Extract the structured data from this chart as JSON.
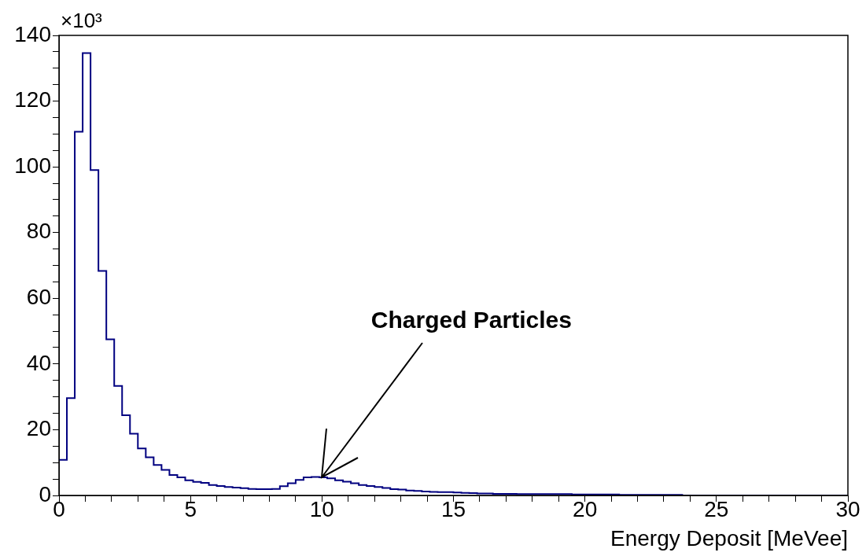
{
  "chart_data": {
    "type": "histogram",
    "xlabel": "Energy Deposit [MeVee]",
    "color": "#000080",
    "bins": [
      0,
      0.3,
      0.6,
      0.9,
      1.2,
      1.5,
      1.8,
      2.1,
      2.4,
      2.7,
      3,
      3.3,
      3.6,
      3.9,
      4.2,
      4.5,
      4.8,
      5.1,
      5.4,
      5.7,
      6,
      6.3,
      6.6,
      6.9,
      7.2,
      7.5,
      7.8,
      8.1,
      8.4,
      8.7,
      9,
      9.3,
      9.6,
      9.9,
      10.2,
      10.5,
      10.8,
      11.1,
      11.4,
      11.7,
      12,
      12.3,
      12.6,
      12.9,
      13.2,
      13.5,
      13.8,
      14.1,
      14.4,
      14.7,
      15,
      15.3,
      15.6,
      15.9,
      16.2,
      16.5,
      16.8,
      17.1,
      17.4,
      17.7,
      18,
      18.3,
      18.6,
      18.9,
      19.2,
      19.5,
      19.8,
      20.1,
      20.4,
      20.7,
      21,
      21.3,
      21.6,
      21.9,
      22.2,
      22.5,
      22.8,
      23.1,
      23.4,
      23.7,
      24,
      24.3,
      24.6,
      24.9,
      25.2,
      25.5,
      25.8,
      26.1,
      26.4,
      26.7,
      27,
      27.3,
      27.6,
      27.9,
      28.2,
      28.5,
      28.8,
      29.1,
      29.4,
      29.7,
      30
    ],
    "values": [
      10.8,
      29.6,
      110.7,
      134.6,
      99,
      68.3,
      47.5,
      33.3,
      24.4,
      18.8,
      14.3,
      11.6,
      9.3,
      7.8,
      6.2,
      5.5,
      4.6,
      4.1,
      3.8,
      3.2,
      2.9,
      2.6,
      2.4,
      2.2,
      2,
      1.9,
      1.9,
      2,
      2.8,
      3.7,
      4.7,
      5.5,
      5.6,
      5.5,
      5.2,
      4.6,
      4.2,
      3.7,
      3.2,
      2.9,
      2.6,
      2.3,
      1.9,
      1.8,
      1.5,
      1.4,
      1.2,
      1.1,
      1,
      1,
      0.9,
      0.8,
      0.7,
      0.6,
      0.6,
      0.5,
      0.5,
      0.5,
      0.4,
      0.4,
      0.4,
      0.4,
      0.4,
      0.4,
      0.4,
      0.3,
      0.3,
      0.3,
      0.3,
      0.3,
      0.3,
      0.2,
      0.2,
      0.2,
      0.2,
      0.2,
      0.2,
      0.2,
      0.2,
      0,
      0,
      0,
      0,
      0,
      0,
      0,
      0,
      0,
      0,
      0,
      0,
      0,
      0,
      0,
      0,
      0,
      0,
      0,
      0,
      0
    ],
    "xlim": [
      0,
      30
    ],
    "xticks": [
      0,
      {
        "value": 1,
        "label": null
      },
      {
        "value": 2,
        "label": null
      },
      {
        "value": 3,
        "label": null
      },
      {
        "value": 4,
        "label": null
      },
      5,
      {
        "value": 6,
        "label": null
      },
      {
        "value": 7,
        "label": null
      },
      {
        "value": 8,
        "label": null
      },
      {
        "value": 9,
        "label": null
      },
      10,
      {
        "value": 11,
        "label": null
      },
      {
        "value": 12,
        "label": null
      },
      {
        "value": 13,
        "label": null
      },
      {
        "value": 14,
        "label": null
      },
      15,
      {
        "value": 16,
        "label": null
      },
      {
        "value": 17,
        "label": null
      },
      {
        "value": 18,
        "label": null
      },
      {
        "value": 19,
        "label": null
      },
      20,
      {
        "value": 21,
        "label": null
      },
      {
        "value": 22,
        "label": null
      },
      {
        "value": 23,
        "label": null
      },
      {
        "value": 24,
        "label": null
      },
      25,
      {
        "value": 26,
        "label": null
      },
      {
        "value": 27,
        "label": null
      },
      {
        "value": 28,
        "label": null
      },
      {
        "value": 29,
        "label": null
      },
      30
    ],
    "ylim": [
      0,
      140
    ],
    "yticks": [
      0,
      {
        "value": 5,
        "label": null
      },
      {
        "value": 10,
        "label": null
      },
      {
        "value": 15,
        "label": null
      },
      20,
      {
        "value": 25,
        "label": null
      },
      {
        "value": 30,
        "label": null
      },
      {
        "value": 35,
        "label": null
      },
      40,
      {
        "value": 45,
        "label": null
      },
      {
        "value": 50,
        "label": null
      },
      {
        "value": 55,
        "label": null
      },
      60,
      {
        "value": 65,
        "label": null
      },
      {
        "value": 70,
        "label": null
      },
      {
        "value": 75,
        "label": null
      },
      80,
      {
        "value": 85,
        "label": null
      },
      {
        "value": 90,
        "label": null
      },
      {
        "value": 95,
        "label": null
      },
      100,
      {
        "value": 105,
        "label": null
      },
      {
        "value": 110,
        "label": null
      },
      {
        "value": 115,
        "label": null
      },
      120,
      {
        "value": 125,
        "label": null
      },
      {
        "value": 130,
        "label": null
      },
      {
        "value": 135,
        "label": null
      },
      140
    ],
    "annotations": [
      "×10³",
      {
        "text": "Charged Particles",
        "x": 10,
        "y": 5.5
      }
    ]
  }
}
